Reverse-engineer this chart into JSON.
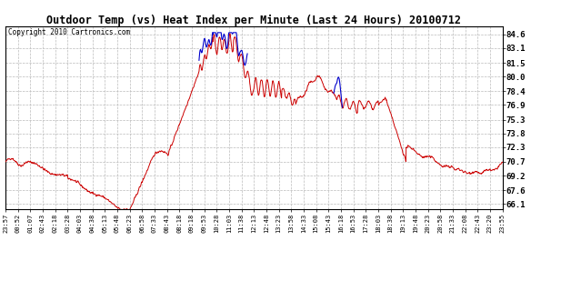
{
  "title": "Outdoor Temp (vs) Heat Index per Minute (Last 24 Hours) 20100712",
  "copyright": "Copyright 2010 Cartronics.com",
  "yticks": [
    66.1,
    67.6,
    69.2,
    70.7,
    72.3,
    73.8,
    75.3,
    76.9,
    78.4,
    80.0,
    81.5,
    83.1,
    84.6
  ],
  "ymin": 65.5,
  "ymax": 85.5,
  "bg_color": "#ffffff",
  "grid_color": "#bbbbbb",
  "red_color": "#cc0000",
  "blue_color": "#0000cc",
  "xtick_labels": [
    "23:57",
    "00:52",
    "01:07",
    "02:43",
    "02:18",
    "03:28",
    "04:03",
    "04:38",
    "05:13",
    "05:48",
    "06:23",
    "06:58",
    "07:33",
    "08:43",
    "08:18",
    "09:18",
    "09:53",
    "10:28",
    "11:03",
    "11:38",
    "12:13",
    "12:48",
    "13:23",
    "13:58",
    "14:33",
    "15:08",
    "15:43",
    "16:18",
    "16:53",
    "17:28",
    "18:03",
    "18:38",
    "19:13",
    "19:48",
    "20:23",
    "20:58",
    "21:33",
    "22:08",
    "22:43",
    "23:20",
    "23:55"
  ]
}
